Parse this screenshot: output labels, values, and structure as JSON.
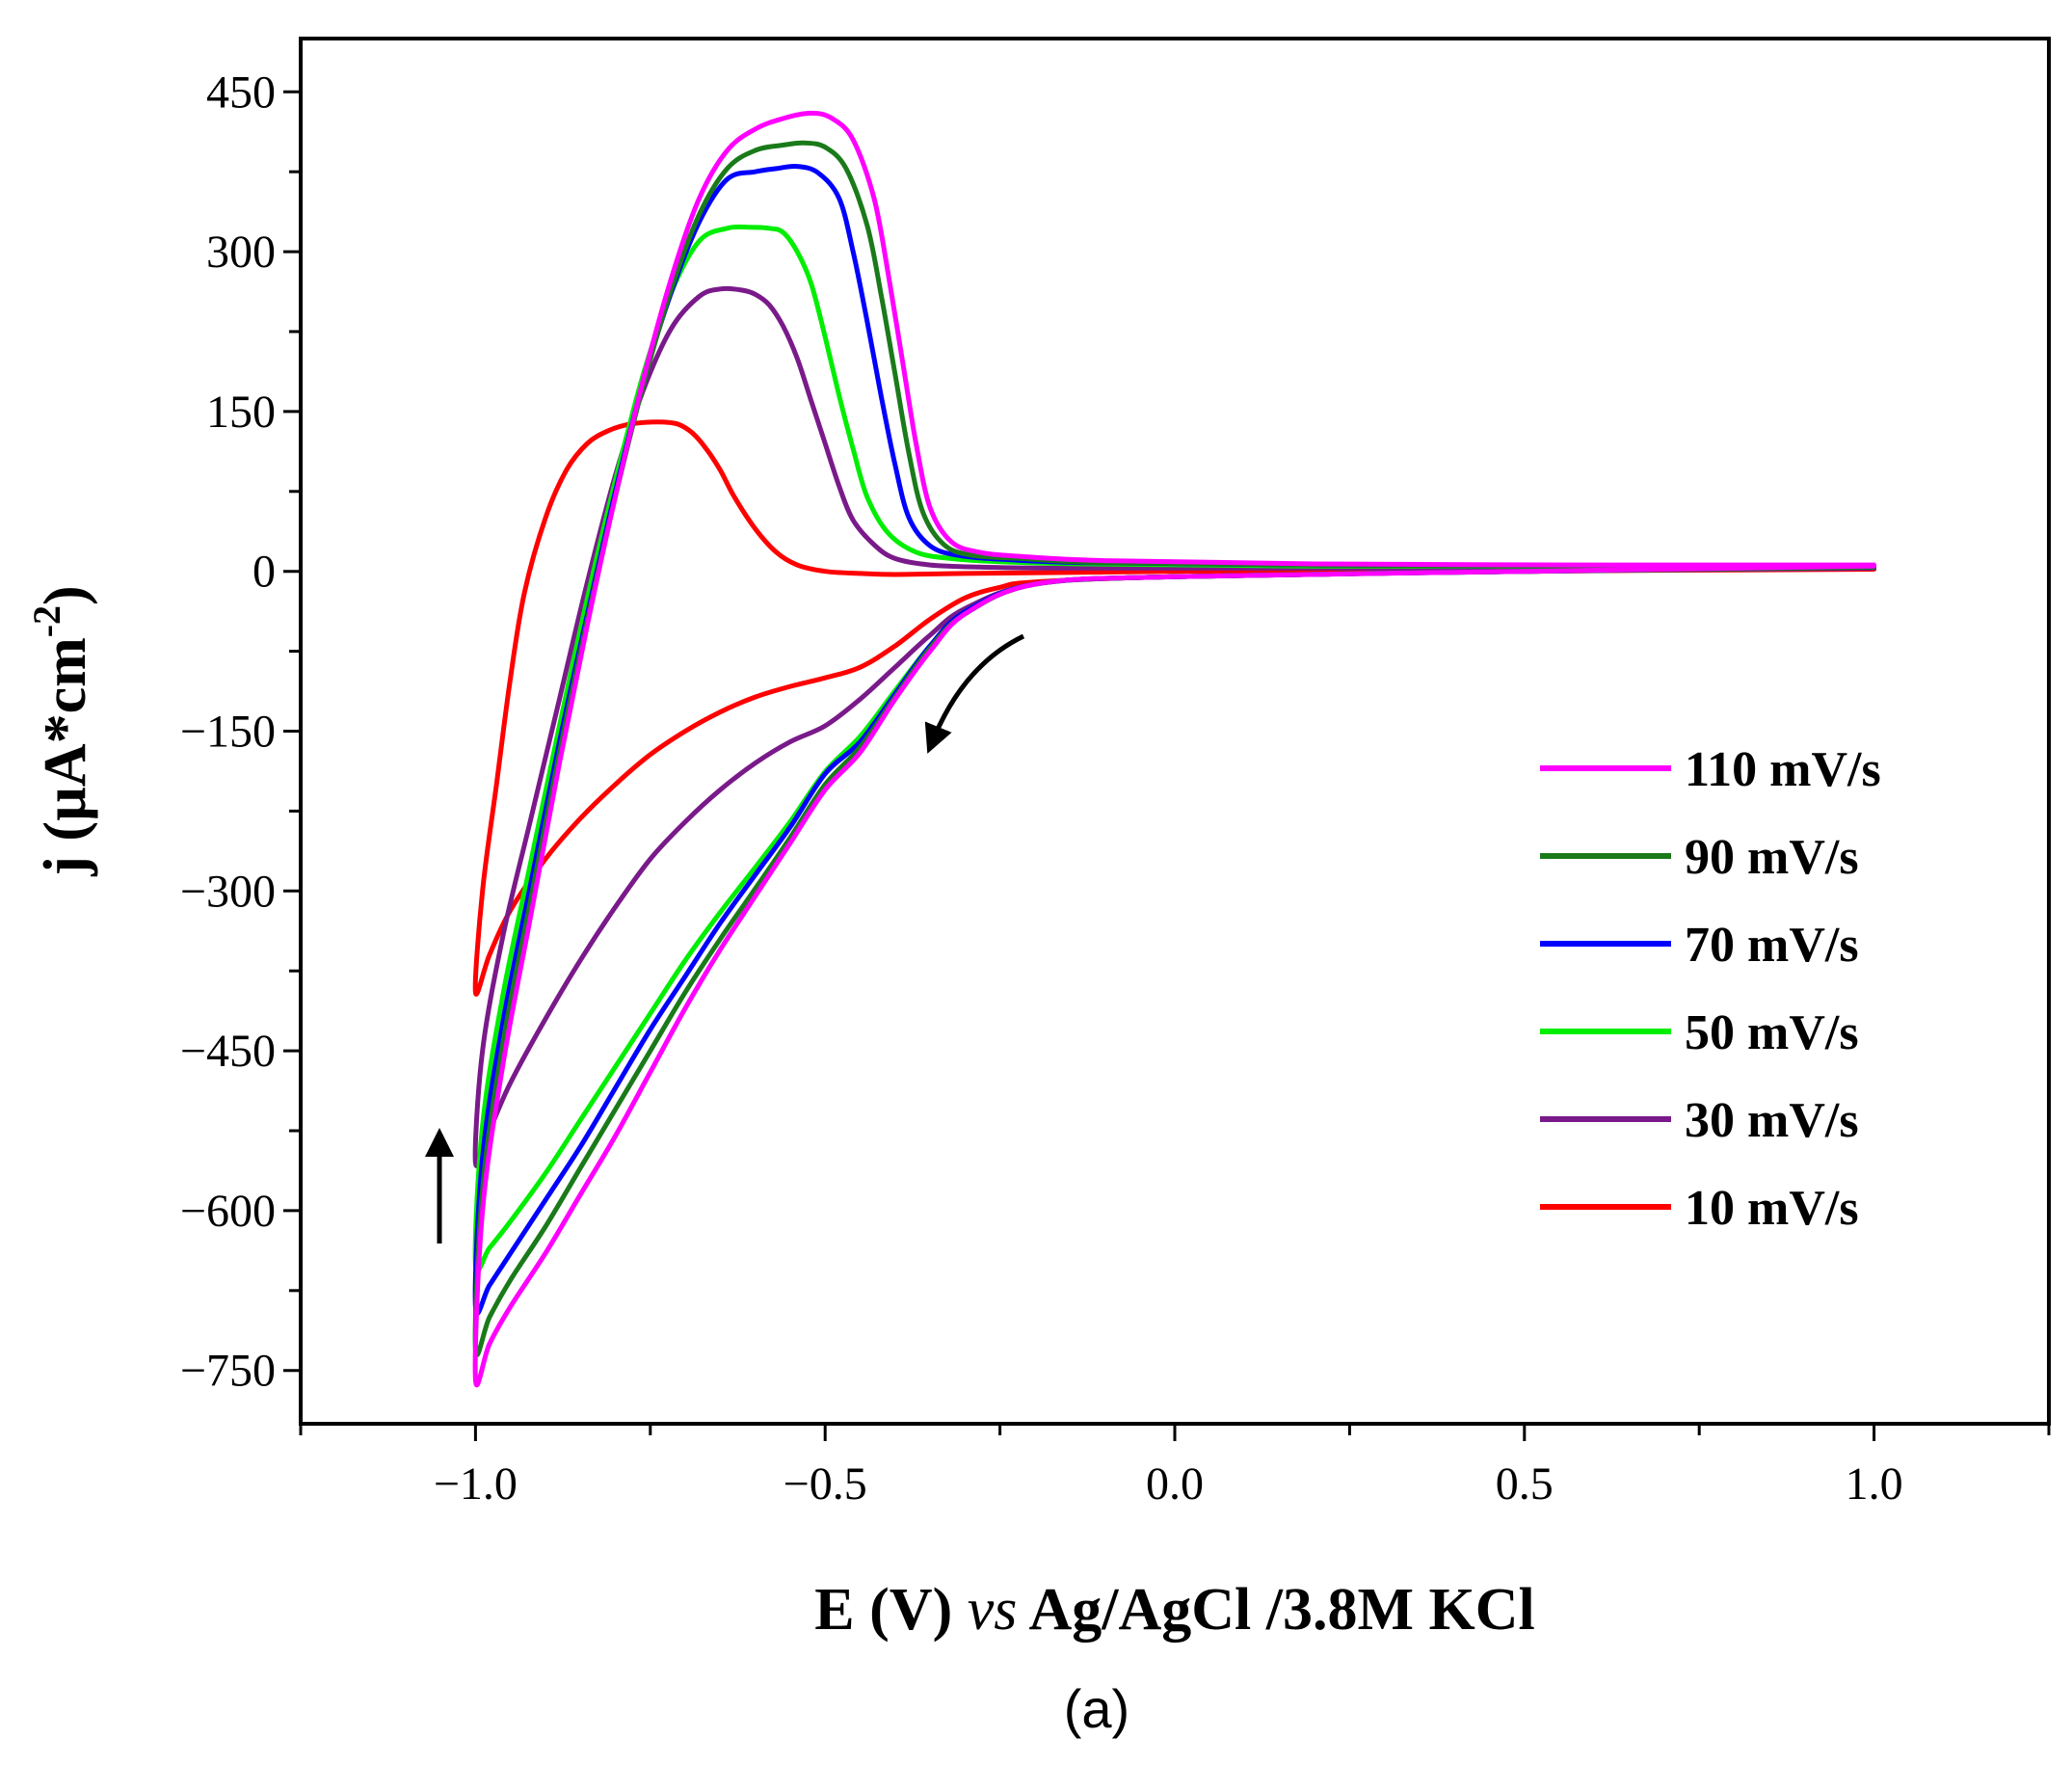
{
  "chart_data": {
    "type": "line",
    "xlabel_parts": [
      "E (V) ",
      "vs",
      " Ag/AgCl /3.8M KCl"
    ],
    "ylabel_main": "j (µA*cm",
    "ylabel_sup": "-2",
    "ylabel_close": ")",
    "caption": "(a)",
    "xlim": [
      -1.25,
      1.25
    ],
    "ylim": [
      -800,
      500
    ],
    "xticks": [
      -1.0,
      -0.5,
      0.0,
      0.5,
      1.0
    ],
    "xtick_labels": [
      "−1.0",
      "−0.5",
      "0.0",
      "0.5",
      "1.0"
    ],
    "yticks": [
      450,
      300,
      150,
      0,
      -150,
      -300,
      -450,
      -600,
      -750
    ],
    "ytick_labels": [
      "450",
      "300",
      "150",
      "0",
      "−150",
      "−300",
      "−450",
      "−600",
      "−750"
    ],
    "series": [
      {
        "name": "110 mV/s",
        "color": "#ff00ff",
        "x": [
          1.0,
          0.5,
          0.0,
          -0.2,
          -0.3,
          -0.35,
          -0.4,
          -0.45,
          -0.5,
          -0.55,
          -0.6,
          -0.65,
          -0.7,
          -0.75,
          -0.8,
          -0.85,
          -0.9,
          -0.95,
          -0.98,
          -1.0,
          -0.99,
          -0.96,
          -0.92,
          -0.88,
          -0.84,
          -0.8,
          -0.76,
          -0.72,
          -0.68,
          -0.64,
          -0.6,
          -0.56,
          -0.52,
          -0.49,
          -0.46,
          -0.43,
          -0.41,
          -0.39,
          -0.37,
          -0.35,
          -0.32,
          -0.28,
          -0.22,
          -0.1,
          0.2,
          0.6,
          1.0
        ],
        "y": [
          5,
          0,
          -5,
          -12,
          -40,
          -75,
          -120,
          -170,
          -205,
          -255,
          -305,
          -355,
          -410,
          -470,
          -530,
          -585,
          -640,
          -690,
          -725,
          -758,
          -600,
          -460,
          -320,
          -180,
          -50,
          70,
          180,
          275,
          350,
          395,
          415,
          425,
          430,
          425,
          405,
          350,
          280,
          200,
          120,
          60,
          28,
          18,
          14,
          10,
          7,
          6,
          6
        ]
      },
      {
        "name": "90 mV/s",
        "color": "#1a7a1a",
        "x": [
          1.0,
          0.5,
          0.0,
          -0.2,
          -0.3,
          -0.35,
          -0.4,
          -0.45,
          -0.5,
          -0.55,
          -0.6,
          -0.65,
          -0.7,
          -0.75,
          -0.8,
          -0.85,
          -0.9,
          -0.95,
          -0.98,
          -1.0,
          -0.99,
          -0.96,
          -0.92,
          -0.88,
          -0.84,
          -0.8,
          -0.76,
          -0.72,
          -0.68,
          -0.64,
          -0.6,
          -0.56,
          -0.53,
          -0.5,
          -0.47,
          -0.44,
          -0.42,
          -0.4,
          -0.38,
          -0.36,
          -0.33,
          -0.29,
          -0.22,
          -0.1,
          0.2,
          0.6,
          1.0
        ],
        "y": [
          4,
          0,
          -5,
          -12,
          -40,
          -72,
          -118,
          -165,
          -200,
          -250,
          -298,
          -345,
          -395,
          -450,
          -505,
          -560,
          -615,
          -665,
          -700,
          -730,
          -580,
          -440,
          -305,
          -170,
          -45,
          70,
          175,
          265,
          335,
          378,
          395,
          400,
          402,
          398,
          378,
          325,
          260,
          185,
          110,
          55,
          25,
          15,
          12,
          8,
          6,
          5,
          5
        ]
      },
      {
        "name": "70 mV/s",
        "color": "#0000ff",
        "x": [
          1.0,
          0.5,
          0.0,
          -0.2,
          -0.3,
          -0.35,
          -0.4,
          -0.45,
          -0.5,
          -0.55,
          -0.6,
          -0.65,
          -0.7,
          -0.75,
          -0.8,
          -0.85,
          -0.9,
          -0.95,
          -0.98,
          -1.0,
          -0.99,
          -0.96,
          -0.92,
          -0.88,
          -0.84,
          -0.8,
          -0.76,
          -0.72,
          -0.68,
          -0.64,
          -0.6,
          -0.57,
          -0.54,
          -0.51,
          -0.48,
          -0.46,
          -0.44,
          -0.42,
          -0.4,
          -0.38,
          -0.35,
          -0.31,
          -0.24,
          -0.12,
          0.2,
          0.6,
          1.0
        ],
        "y": [
          4,
          0,
          -5,
          -12,
          -38,
          -70,
          -115,
          -160,
          -190,
          -240,
          -285,
          -330,
          -380,
          -430,
          -485,
          -540,
          -590,
          -640,
          -670,
          -690,
          -550,
          -420,
          -290,
          -160,
          -40,
          75,
          178,
          262,
          328,
          368,
          375,
          378,
          380,
          374,
          350,
          300,
          235,
          165,
          100,
          50,
          24,
          15,
          11,
          8,
          6,
          5,
          5
        ]
      },
      {
        "name": "50 mV/s",
        "color": "#00ee00",
        "x": [
          1.0,
          0.5,
          0.0,
          -0.2,
          -0.3,
          -0.35,
          -0.4,
          -0.45,
          -0.5,
          -0.55,
          -0.6,
          -0.65,
          -0.7,
          -0.75,
          -0.8,
          -0.85,
          -0.9,
          -0.95,
          -0.98,
          -1.0,
          -0.99,
          -0.96,
          -0.92,
          -0.88,
          -0.84,
          -0.8,
          -0.76,
          -0.72,
          -0.68,
          -0.64,
          -0.61,
          -0.58,
          -0.56,
          -0.54,
          -0.52,
          -0.5,
          -0.48,
          -0.46,
          -0.44,
          -0.41,
          -0.37,
          -0.32,
          -0.25,
          -0.12,
          0.2,
          0.6,
          1.0
        ],
        "y": [
          4,
          0,
          -5,
          -12,
          -38,
          -70,
          -112,
          -155,
          -188,
          -235,
          -278,
          -320,
          -365,
          -415,
          -465,
          -515,
          -565,
          -610,
          -635,
          -650,
          -520,
          -395,
          -270,
          -145,
          -25,
          85,
          185,
          262,
          310,
          322,
          323,
          322,
          318,
          300,
          270,
          220,
          165,
          115,
          70,
          36,
          18,
          12,
          9,
          7,
          5,
          5,
          5
        ]
      },
      {
        "name": "30 mV/s",
        "color": "#7a1a8a",
        "x": [
          1.0,
          0.5,
          0.0,
          -0.2,
          -0.3,
          -0.35,
          -0.4,
          -0.45,
          -0.5,
          -0.55,
          -0.6,
          -0.65,
          -0.7,
          -0.75,
          -0.8,
          -0.85,
          -0.9,
          -0.95,
          -0.98,
          -1.0,
          -0.99,
          -0.96,
          -0.92,
          -0.88,
          -0.84,
          -0.8,
          -0.76,
          -0.72,
          -0.68,
          -0.65,
          -0.62,
          -0.6,
          -0.58,
          -0.56,
          -0.54,
          -0.52,
          -0.5,
          -0.48,
          -0.46,
          -0.43,
          -0.4,
          -0.35,
          -0.28,
          -0.15,
          0.2,
          0.6,
          1.0
        ],
        "y": [
          3,
          0,
          -5,
          -12,
          -35,
          -60,
          -90,
          -120,
          -145,
          -160,
          -180,
          -205,
          -235,
          -270,
          -315,
          -365,
          -420,
          -480,
          -525,
          -555,
          -450,
          -340,
          -230,
          -120,
          -10,
          90,
          170,
          228,
          258,
          265,
          264,
          260,
          250,
          230,
          200,
          160,
          120,
          80,
          48,
          25,
          12,
          6,
          4,
          3,
          3,
          3,
          3
        ]
      },
      {
        "name": "10 mV/s",
        "color": "#ff0000",
        "x": [
          1.0,
          0.5,
          0.0,
          -0.2,
          -0.25,
          -0.3,
          -0.35,
          -0.4,
          -0.45,
          -0.5,
          -0.55,
          -0.6,
          -0.65,
          -0.7,
          -0.75,
          -0.8,
          -0.85,
          -0.9,
          -0.95,
          -0.98,
          -1.0,
          -0.99,
          -0.97,
          -0.95,
          -0.93,
          -0.9,
          -0.87,
          -0.84,
          -0.81,
          -0.78,
          -0.75,
          -0.73,
          -0.71,
          -0.69,
          -0.67,
          -0.65,
          -0.63,
          -0.6,
          -0.57,
          -0.54,
          -0.5,
          -0.45,
          -0.4,
          -0.3,
          0.0,
          0.5,
          1.0
        ],
        "y": [
          2,
          0,
          -5,
          -10,
          -15,
          -25,
          -45,
          -70,
          -90,
          -100,
          -108,
          -118,
          -132,
          -150,
          -172,
          -200,
          -232,
          -270,
          -318,
          -360,
          -395,
          -300,
          -200,
          -100,
          -20,
          50,
          95,
          120,
          132,
          138,
          140,
          140,
          138,
          130,
          115,
          95,
          70,
          40,
          18,
          6,
          0,
          -2,
          -3,
          -2,
          0,
          2,
          3
        ]
      }
    ],
    "legend_position": "right"
  }
}
